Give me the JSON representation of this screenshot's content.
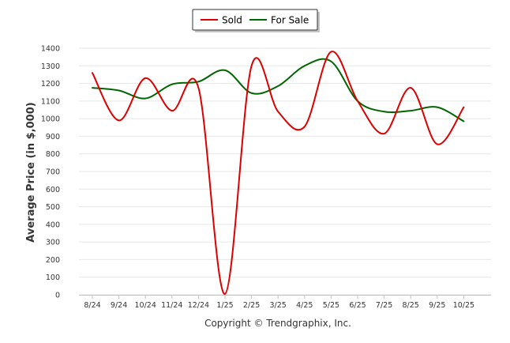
{
  "chart_data": {
    "type": "line",
    "ylabel": "Average Price (in $,000)",
    "xlabel": "",
    "ylim": [
      0,
      1400
    ],
    "yticks": [
      0,
      100,
      200,
      300,
      400,
      500,
      600,
      700,
      800,
      900,
      1000,
      1100,
      1200,
      1300,
      1400
    ],
    "grid": true,
    "legend_position": "top-center",
    "categories": [
      "8/24",
      "9/24",
      "10/24",
      "11/24",
      "12/24",
      "1/25",
      "2/25",
      "3/25",
      "4/25",
      "5/25",
      "6/25",
      "7/25",
      "8/25",
      "9/25",
      "10/25"
    ],
    "series": [
      {
        "name": "Sold",
        "color": "#dd0000",
        "values": [
          1260,
          990,
          1230,
          1045,
          1175,
          5,
          1300,
          1040,
          955,
          1380,
          1100,
          915,
          1175,
          855,
          1065
        ]
      },
      {
        "name": "For Sale",
        "color": "#006600",
        "values": [
          1175,
          1160,
          1115,
          1195,
          1210,
          1275,
          1145,
          1185,
          1300,
          1325,
          1100,
          1040,
          1045,
          1065,
          985
        ]
      }
    ]
  },
  "footer": {
    "copyright": "Copyright © Trendgraphix, Inc."
  }
}
